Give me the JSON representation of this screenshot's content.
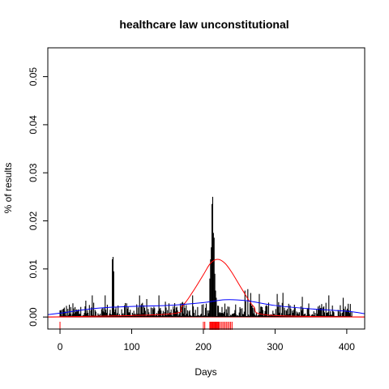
{
  "chart_data": {
    "type": "bar",
    "title": "healthcare law unconstitutional",
    "xlabel": "Days",
    "ylabel": "% of results",
    "xlim": [
      -17,
      425
    ],
    "ylim": [
      -0.0025,
      0.056
    ],
    "x_ticks": [
      0,
      100,
      200,
      300,
      400
    ],
    "x_tick_labels": [
      "0",
      "100",
      "200",
      "300",
      "400"
    ],
    "y_ticks": [
      0.0,
      0.01,
      0.02,
      0.03,
      0.04,
      0.05
    ],
    "y_tick_labels": [
      "0.00",
      "0.01",
      "0.02",
      "0.03",
      "0.04",
      "0.05"
    ],
    "grid": false,
    "daily_bar_range": [
      0,
      407
    ],
    "spikes": [
      {
        "x": 73,
        "y": 0.012
      },
      {
        "x": 74,
        "y": 0.0125
      },
      {
        "x": 75,
        "y": 0.0095
      },
      {
        "x": 209,
        "y": 0.008
      },
      {
        "x": 210,
        "y": 0.012
      },
      {
        "x": 211,
        "y": 0.0145
      },
      {
        "x": 212,
        "y": 0.0235
      },
      {
        "x": 213,
        "y": 0.025
      },
      {
        "x": 214,
        "y": 0.0175
      },
      {
        "x": 215,
        "y": 0.0165
      },
      {
        "x": 216,
        "y": 0.009
      },
      {
        "x": 217,
        "y": 0.0055
      },
      {
        "x": 218,
        "y": 0.004
      },
      {
        "x": 45,
        "y": 0.0045
      },
      {
        "x": 63,
        "y": 0.0045
      },
      {
        "x": 138,
        "y": 0.0045
      },
      {
        "x": 185,
        "y": 0.0045
      },
      {
        "x": 258,
        "y": 0.0055
      },
      {
        "x": 262,
        "y": 0.0058
      },
      {
        "x": 266,
        "y": 0.005
      },
      {
        "x": 278,
        "y": 0.0048
      },
      {
        "x": 303,
        "y": 0.0048
      },
      {
        "x": 338,
        "y": 0.0042
      },
      {
        "x": 375,
        "y": 0.0045
      },
      {
        "x": 395,
        "y": 0.004
      }
    ],
    "series": [
      {
        "kind": "curve",
        "color": "#ff0000",
        "points": [
          [
            -17,
            0
          ],
          [
            150,
            0.0006
          ],
          [
            170,
            0.0022
          ],
          [
            185,
            0.0052
          ],
          [
            200,
            0.0088
          ],
          [
            210,
            0.0112
          ],
          [
            220,
            0.012
          ],
          [
            230,
            0.0112
          ],
          [
            240,
            0.0092
          ],
          [
            255,
            0.0055
          ],
          [
            270,
            0.0022
          ],
          [
            290,
            0.0004
          ],
          [
            425,
            0
          ]
        ]
      },
      {
        "kind": "curve",
        "color": "#0000ff",
        "points": [
          [
            -17,
            0.0005
          ],
          [
            0,
            0.0008
          ],
          [
            50,
            0.0018
          ],
          [
            100,
            0.0022
          ],
          [
            150,
            0.0024
          ],
          [
            200,
            0.003
          ],
          [
            230,
            0.0036
          ],
          [
            260,
            0.0034
          ],
          [
            300,
            0.0024
          ],
          [
            350,
            0.0017
          ],
          [
            400,
            0.0012
          ],
          [
            425,
            0.0007
          ]
        ]
      }
    ],
    "rug": {
      "color": "#ff0000",
      "x": [
        0,
        200,
        202,
        209,
        210,
        211,
        212,
        213,
        214,
        215,
        216,
        217,
        218,
        219,
        220,
        221,
        222,
        224,
        226,
        228,
        230,
        232,
        234,
        236,
        238,
        240
      ]
    }
  }
}
